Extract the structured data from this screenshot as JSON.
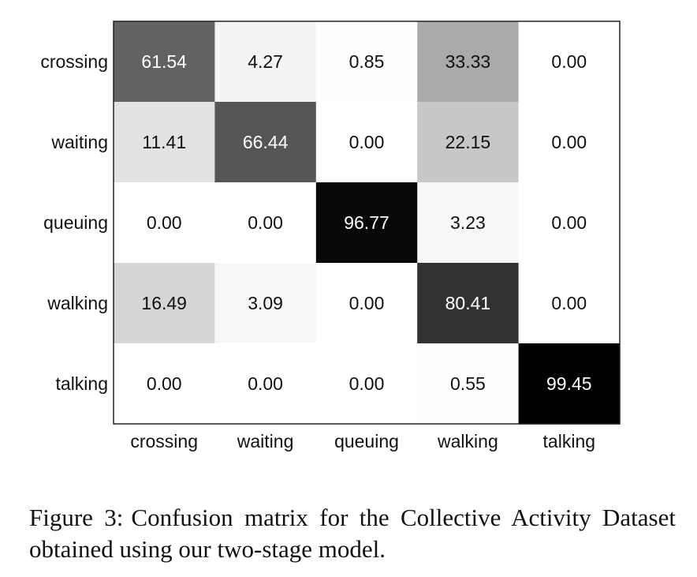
{
  "chart_data": {
    "type": "heatmap",
    "title": "Confusion matrix for the Collective Activity Dataset obtained using our two-stage model.",
    "row_labels": [
      "crossing",
      "waiting",
      "queuing",
      "walking",
      "talking"
    ],
    "col_labels": [
      "crossing",
      "waiting",
      "queuing",
      "walking",
      "talking"
    ],
    "values": [
      [
        "61.54",
        "4.27",
        "0.85",
        "33.33",
        "0.00"
      ],
      [
        "11.41",
        "66.44",
        "0.00",
        "22.15",
        "0.00"
      ],
      [
        "0.00",
        "0.00",
        "96.77",
        "3.23",
        "0.00"
      ],
      [
        "16.49",
        "3.09",
        "0.00",
        "80.41",
        "0.00"
      ],
      [
        "0.00",
        "0.00",
        "0.00",
        "0.55",
        "99.45"
      ]
    ],
    "value_range": [
      0,
      100
    ],
    "colormap": "white-to-black grayscale",
    "grid": false
  },
  "caption": {
    "label": "Figure 3:",
    "text": "Confusion matrix for the Collective Activity Dataset obtained using our two-stage model."
  }
}
